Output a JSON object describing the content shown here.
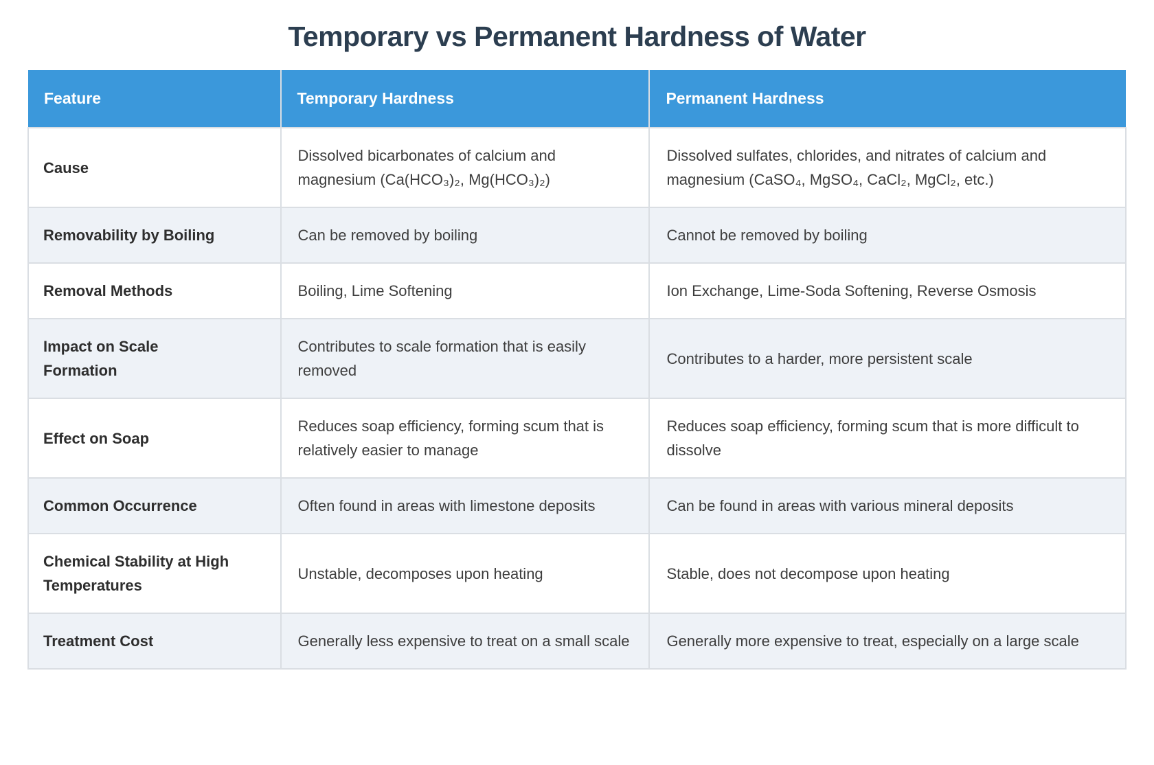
{
  "page": {
    "title": "Temporary vs Permanent Hardness of Water"
  },
  "colors": {
    "header_bg": "#3b98db",
    "header_text": "#ffffff",
    "title_text": "#2c3e50",
    "row_bg": "#ffffff",
    "row_alt_bg": "#eef2f7",
    "grid_line": "#dadee3",
    "body_text": "#3d3d3d"
  },
  "table": {
    "columns": [
      {
        "label": "Feature"
      },
      {
        "label": "Temporary Hardness"
      },
      {
        "label": "Permanent Hardness"
      }
    ],
    "rows": [
      {
        "feature": "Cause",
        "temporary": "Dissolved bicarbonates of calcium and magnesium (Ca(HCO₃)₂, Mg(HCO₃)₂)",
        "permanent": "Dissolved sulfates, chlorides, and nitrates of calcium and magnesium (CaSO₄, MgSO₄, CaCl₂, MgCl₂, etc.)"
      },
      {
        "feature": "Removability by Boiling",
        "temporary": "Can be removed by boiling",
        "permanent": "Cannot be removed by boiling"
      },
      {
        "feature": "Removal Methods",
        "temporary": "Boiling, Lime Softening",
        "permanent": "Ion Exchange, Lime-Soda Softening, Reverse Osmosis"
      },
      {
        "feature": "Impact on Scale\nFormation",
        "temporary": "Contributes to scale formation that is easily removed",
        "permanent": "Contributes to a harder, more persistent scale"
      },
      {
        "feature": "Effect on Soap",
        "temporary": "Reduces soap efficiency, forming scum that is relatively easier to manage",
        "permanent": "Reduces soap efficiency, forming scum that is more difficult to dissolve"
      },
      {
        "feature": "Common Occurrence",
        "temporary": "Often found in areas with limestone deposits",
        "permanent": "Can be found in areas with various mineral deposits"
      },
      {
        "feature": "Chemical Stability at High\nTemperatures",
        "temporary": "Unstable, decomposes upon heating",
        "permanent": "Stable, does not decompose upon heating"
      },
      {
        "feature": "Treatment Cost",
        "temporary": "Generally less expensive to treat on a small scale",
        "permanent": "Generally more expensive to treat, especially on a large scale"
      }
    ]
  }
}
